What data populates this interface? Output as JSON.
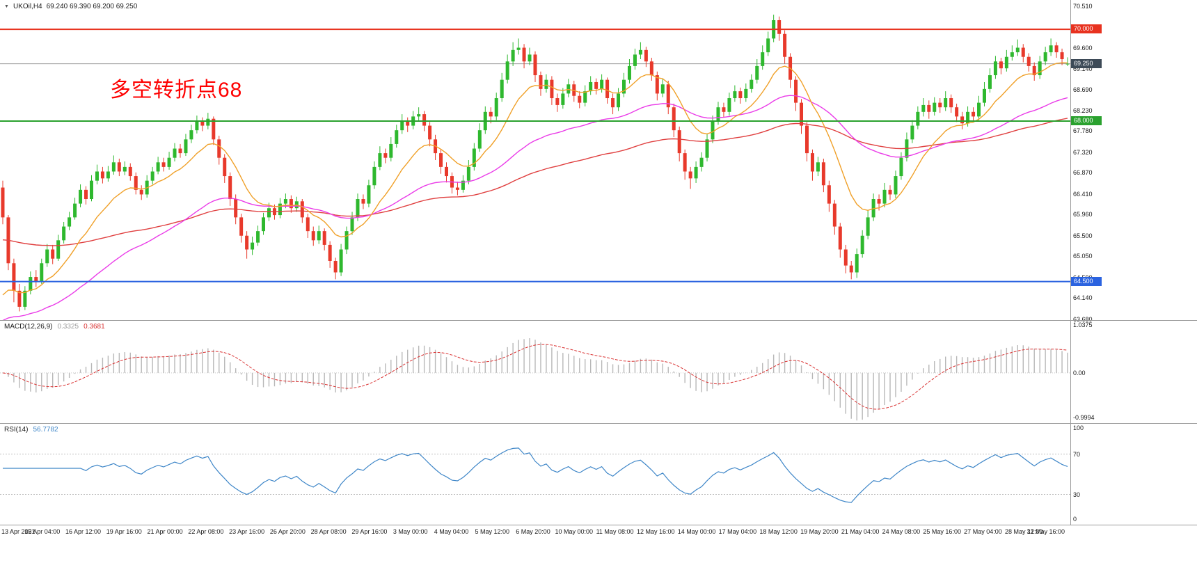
{
  "symbol_info": {
    "dropdown": "▼",
    "symbol": "UKOil,H4",
    "ohlc": "69.240 69.390 69.200 69.250"
  },
  "annotation": {
    "text": "多空转折点68",
    "color": "#fe0000"
  },
  "chart_data": {
    "type": "candlestick",
    "symbol": "UKOil",
    "timeframe": "H4",
    "last_ohlc": {
      "open": "69.240",
      "high": "69.390",
      "low": "69.200",
      "close": "69.250"
    },
    "y_range": [
      63.66,
      70.64
    ],
    "y_tick_labels": [
      "70.510",
      "69.600",
      "69.140",
      "68.690",
      "68.230",
      "67.780",
      "67.320",
      "66.870",
      "66.410",
      "65.960",
      "65.500",
      "65.050",
      "64.590",
      "64.140",
      "63.680"
    ],
    "price_badges": [
      {
        "name": "resistance-line",
        "label": "70.000",
        "price": 70.0,
        "bg": "#e8321f",
        "line": "#e8321f",
        "lw": 2
      },
      {
        "name": "current-price",
        "label": "69.250",
        "price": 69.25,
        "bg": "#3d4a57",
        "line": "#9a9a9a",
        "lw": 1
      },
      {
        "name": "support-line",
        "label": "68.000",
        "price": 68.0,
        "bg": "#2aa12e",
        "line": "#2aa12e",
        "lw": 2
      },
      {
        "name": "support-line-2",
        "label": "64.500",
        "price": 64.5,
        "bg": "#2b63e0",
        "line": "#2b63e0",
        "lw": 2
      }
    ],
    "candle_colors": {
      "up": "#2eb82e",
      "down": "#e8392b"
    },
    "x_labels": [
      "13 Apr 2021",
      "15 Apr 04:00",
      "16 Apr 12:00",
      "19 Apr 16:00",
      "21 Apr 00:00",
      "22 Apr 08:00",
      "23 Apr 16:00",
      "26 Apr 20:00",
      "28 Apr 08:00",
      "29 Apr 16:00",
      "3 May 00:00",
      "4 May 04:00",
      "5 May 12:00",
      "6 May 20:00",
      "10 May 00:00",
      "11 May 08:00",
      "12 May 16:00",
      "14 May 00:00",
      "17 May 04:00",
      "18 May 12:00",
      "19 May 20:00",
      "21 May 04:00",
      "24 May 08:00",
      "25 May 16:00",
      "27 May 04:00",
      "28 May 12:00",
      "31 May 16:00"
    ],
    "candles": [
      [
        66.55,
        66.7,
        65.75,
        65.9
      ],
      [
        65.9,
        65.95,
        64.75,
        64.9
      ],
      [
        64.9,
        65.0,
        64.05,
        64.3
      ],
      [
        64.3,
        64.45,
        63.85,
        63.95
      ],
      [
        63.95,
        64.4,
        63.88,
        64.3
      ],
      [
        64.3,
        64.72,
        64.22,
        64.6
      ],
      [
        64.6,
        64.75,
        64.38,
        64.5
      ],
      [
        64.5,
        65.0,
        64.45,
        64.9
      ],
      [
        64.9,
        65.32,
        64.82,
        65.2
      ],
      [
        65.2,
        65.3,
        64.88,
        65.0
      ],
      [
        65.0,
        65.52,
        64.95,
        65.4
      ],
      [
        65.4,
        65.8,
        65.33,
        65.7
      ],
      [
        65.7,
        66.02,
        65.62,
        65.9
      ],
      [
        65.9,
        66.33,
        65.85,
        66.2
      ],
      [
        66.2,
        66.62,
        66.12,
        66.5
      ],
      [
        66.5,
        66.58,
        66.18,
        66.3
      ],
      [
        66.3,
        66.82,
        66.25,
        66.7
      ],
      [
        66.7,
        67.05,
        66.62,
        66.9
      ],
      [
        66.9,
        67.0,
        66.64,
        66.75
      ],
      [
        66.75,
        67.02,
        66.68,
        66.9
      ],
      [
        66.9,
        67.25,
        66.83,
        67.1
      ],
      [
        67.1,
        67.18,
        66.8,
        66.9
      ],
      [
        66.9,
        67.12,
        66.82,
        67.0
      ],
      [
        67.0,
        67.08,
        66.7,
        66.8
      ],
      [
        66.8,
        66.88,
        66.4,
        66.5
      ],
      [
        66.5,
        66.6,
        66.28,
        66.4
      ],
      [
        66.4,
        66.82,
        66.33,
        66.7
      ],
      [
        66.7,
        67.0,
        66.62,
        66.9
      ],
      [
        66.9,
        67.22,
        66.84,
        67.1
      ],
      [
        67.1,
        67.2,
        66.9,
        67.0
      ],
      [
        67.0,
        67.33,
        66.94,
        67.2
      ],
      [
        67.2,
        67.52,
        67.12,
        67.4
      ],
      [
        67.4,
        67.5,
        67.2,
        67.3
      ],
      [
        67.3,
        67.72,
        67.24,
        67.6
      ],
      [
        67.6,
        67.92,
        67.52,
        67.8
      ],
      [
        67.8,
        68.12,
        67.73,
        68.0
      ],
      [
        68.0,
        68.08,
        67.78,
        67.9
      ],
      [
        67.9,
        68.18,
        67.82,
        68.05
      ],
      [
        68.05,
        68.1,
        67.48,
        67.6
      ],
      [
        67.6,
        67.68,
        67.05,
        67.2
      ],
      [
        67.2,
        67.28,
        66.65,
        66.8
      ],
      [
        66.8,
        66.88,
        66.15,
        66.3
      ],
      [
        66.3,
        66.4,
        65.75,
        65.9
      ],
      [
        65.9,
        65.98,
        65.35,
        65.5
      ],
      [
        65.5,
        65.6,
        65.0,
        65.2
      ],
      [
        65.2,
        65.48,
        65.08,
        65.35
      ],
      [
        65.35,
        65.72,
        65.28,
        65.6
      ],
      [
        65.6,
        66.0,
        65.52,
        65.9
      ],
      [
        65.9,
        66.22,
        65.82,
        66.1
      ],
      [
        66.1,
        66.18,
        65.85,
        65.95
      ],
      [
        65.95,
        66.32,
        65.88,
        66.2
      ],
      [
        66.2,
        66.42,
        66.1,
        66.3
      ],
      [
        66.3,
        66.38,
        66.0,
        66.1
      ],
      [
        66.1,
        66.35,
        66.02,
        66.25
      ],
      [
        66.25,
        66.3,
        65.78,
        65.9
      ],
      [
        65.9,
        65.98,
        65.45,
        65.6
      ],
      [
        65.6,
        65.7,
        65.28,
        65.4
      ],
      [
        65.4,
        65.72,
        65.32,
        65.6
      ],
      [
        65.6,
        65.66,
        65.18,
        65.3
      ],
      [
        65.3,
        65.38,
        64.8,
        64.95
      ],
      [
        64.95,
        65.02,
        64.55,
        64.7
      ],
      [
        64.7,
        65.32,
        64.62,
        65.2
      ],
      [
        65.2,
        65.7,
        65.1,
        65.6
      ],
      [
        65.6,
        66.02,
        65.52,
        65.9
      ],
      [
        65.9,
        66.42,
        65.82,
        66.3
      ],
      [
        66.3,
        66.4,
        66.08,
        66.2
      ],
      [
        66.2,
        66.72,
        66.12,
        66.6
      ],
      [
        66.6,
        67.12,
        66.52,
        67.0
      ],
      [
        67.0,
        67.45,
        66.93,
        67.3
      ],
      [
        67.3,
        67.4,
        67.08,
        67.2
      ],
      [
        67.2,
        67.65,
        67.12,
        67.5
      ],
      [
        67.5,
        67.92,
        67.42,
        67.8
      ],
      [
        67.8,
        68.15,
        67.72,
        68.0
      ],
      [
        68.0,
        68.08,
        67.76,
        67.9
      ],
      [
        67.9,
        68.22,
        67.82,
        68.1
      ],
      [
        68.1,
        68.3,
        68.0,
        68.15
      ],
      [
        68.15,
        68.22,
        67.78,
        67.9
      ],
      [
        67.9,
        67.98,
        67.45,
        67.6
      ],
      [
        67.6,
        67.7,
        67.15,
        67.3
      ],
      [
        67.3,
        67.38,
        66.85,
        67.0
      ],
      [
        67.0,
        67.1,
        66.66,
        66.8
      ],
      [
        66.8,
        66.88,
        66.42,
        66.55
      ],
      [
        66.55,
        66.68,
        66.38,
        66.5
      ],
      [
        66.5,
        66.82,
        66.44,
        66.7
      ],
      [
        66.7,
        67.15,
        66.62,
        67.0
      ],
      [
        67.0,
        67.52,
        66.92,
        67.4
      ],
      [
        67.4,
        67.95,
        67.33,
        67.8
      ],
      [
        67.8,
        68.32,
        67.72,
        68.2
      ],
      [
        68.2,
        68.3,
        67.95,
        68.1
      ],
      [
        68.1,
        68.62,
        68.02,
        68.5
      ],
      [
        68.5,
        69.05,
        68.42,
        68.9
      ],
      [
        68.9,
        69.45,
        68.82,
        69.3
      ],
      [
        69.3,
        69.72,
        69.2,
        69.55
      ],
      [
        69.55,
        69.8,
        69.45,
        69.6
      ],
      [
        69.6,
        69.68,
        69.15,
        69.3
      ],
      [
        69.3,
        69.6,
        69.22,
        69.45
      ],
      [
        69.45,
        69.52,
        68.85,
        69.0
      ],
      [
        69.0,
        69.08,
        68.55,
        68.7
      ],
      [
        68.7,
        69.02,
        68.62,
        68.9
      ],
      [
        68.9,
        68.98,
        68.35,
        68.5
      ],
      [
        68.5,
        68.6,
        68.2,
        68.35
      ],
      [
        68.35,
        68.72,
        68.27,
        68.6
      ],
      [
        68.6,
        68.92,
        68.52,
        68.8
      ],
      [
        68.8,
        68.88,
        68.42,
        68.55
      ],
      [
        68.55,
        68.65,
        68.28,
        68.4
      ],
      [
        68.4,
        68.78,
        68.32,
        68.65
      ],
      [
        68.65,
        68.98,
        68.57,
        68.85
      ],
      [
        68.85,
        68.93,
        68.58,
        68.7
      ],
      [
        68.7,
        69.02,
        68.62,
        68.9
      ],
      [
        68.9,
        68.95,
        68.38,
        68.5
      ],
      [
        68.5,
        68.6,
        68.15,
        68.3
      ],
      [
        68.3,
        68.72,
        68.22,
        68.6
      ],
      [
        68.6,
        69.05,
        68.52,
        68.9
      ],
      [
        68.9,
        69.35,
        68.82,
        69.2
      ],
      [
        69.2,
        69.58,
        69.12,
        69.45
      ],
      [
        69.45,
        69.72,
        69.35,
        69.55
      ],
      [
        69.55,
        69.62,
        69.18,
        69.3
      ],
      [
        69.3,
        69.38,
        68.88,
        69.0
      ],
      [
        69.0,
        69.08,
        68.45,
        68.6
      ],
      [
        68.6,
        68.92,
        68.52,
        68.8
      ],
      [
        68.8,
        68.88,
        68.15,
        68.3
      ],
      [
        68.3,
        68.38,
        67.65,
        67.8
      ],
      [
        67.8,
        67.88,
        67.12,
        67.3
      ],
      [
        67.3,
        67.38,
        66.72,
        66.9
      ],
      [
        66.9,
        67.0,
        66.52,
        66.75
      ],
      [
        66.75,
        67.12,
        66.65,
        67.0
      ],
      [
        67.0,
        67.32,
        66.9,
        67.2
      ],
      [
        67.2,
        67.72,
        67.12,
        67.6
      ],
      [
        67.6,
        68.12,
        67.52,
        68.0
      ],
      [
        68.0,
        68.42,
        67.92,
        68.3
      ],
      [
        68.3,
        68.4,
        68.08,
        68.2
      ],
      [
        68.2,
        68.62,
        68.12,
        68.5
      ],
      [
        68.5,
        68.78,
        68.42,
        68.65
      ],
      [
        68.65,
        68.73,
        68.38,
        68.5
      ],
      [
        68.5,
        68.82,
        68.42,
        68.7
      ],
      [
        68.7,
        69.02,
        68.62,
        68.9
      ],
      [
        68.9,
        69.35,
        68.82,
        69.2
      ],
      [
        69.2,
        69.65,
        69.12,
        69.5
      ],
      [
        69.5,
        69.95,
        69.42,
        69.8
      ],
      [
        69.8,
        70.32,
        69.72,
        70.2
      ],
      [
        70.2,
        70.28,
        69.75,
        69.9
      ],
      [
        69.9,
        69.98,
        69.25,
        69.4
      ],
      [
        69.4,
        69.48,
        68.72,
        68.9
      ],
      [
        68.9,
        68.98,
        68.22,
        68.4
      ],
      [
        68.4,
        68.48,
        67.72,
        67.9
      ],
      [
        67.9,
        67.98,
        67.12,
        67.3
      ],
      [
        67.3,
        67.38,
        66.7,
        66.9
      ],
      [
        66.9,
        67.22,
        66.8,
        67.1
      ],
      [
        67.1,
        67.18,
        66.45,
        66.6
      ],
      [
        66.6,
        66.7,
        66.02,
        66.2
      ],
      [
        66.2,
        66.28,
        65.52,
        65.7
      ],
      [
        65.7,
        65.78,
        65.02,
        65.2
      ],
      [
        65.2,
        65.3,
        64.68,
        64.85
      ],
      [
        64.85,
        64.95,
        64.55,
        64.7
      ],
      [
        64.7,
        65.22,
        64.58,
        65.1
      ],
      [
        65.1,
        65.62,
        65.02,
        65.5
      ],
      [
        65.5,
        66.05,
        65.42,
        65.9
      ],
      [
        65.9,
        66.42,
        65.82,
        66.3
      ],
      [
        66.3,
        66.4,
        66.05,
        66.2
      ],
      [
        66.2,
        66.65,
        66.12,
        66.5
      ],
      [
        66.5,
        66.6,
        66.28,
        66.4
      ],
      [
        66.4,
        66.92,
        66.32,
        66.8
      ],
      [
        66.8,
        67.32,
        66.72,
        67.2
      ],
      [
        67.2,
        67.75,
        67.12,
        67.6
      ],
      [
        67.6,
        68.02,
        67.52,
        67.9
      ],
      [
        67.9,
        68.32,
        67.82,
        68.2
      ],
      [
        68.2,
        68.5,
        68.1,
        68.35
      ],
      [
        68.35,
        68.45,
        68.05,
        68.2
      ],
      [
        68.2,
        68.52,
        68.12,
        68.4
      ],
      [
        68.4,
        68.5,
        68.18,
        68.3
      ],
      [
        68.3,
        68.65,
        68.22,
        68.5
      ],
      [
        68.5,
        68.58,
        68.18,
        68.3
      ],
      [
        68.3,
        68.38,
        67.98,
        68.1
      ],
      [
        68.1,
        68.2,
        67.82,
        67.95
      ],
      [
        67.95,
        68.32,
        67.88,
        68.2
      ],
      [
        68.2,
        68.3,
        67.98,
        68.1
      ],
      [
        68.1,
        68.55,
        68.02,
        68.4
      ],
      [
        68.4,
        68.85,
        68.32,
        68.7
      ],
      [
        68.7,
        69.15,
        68.62,
        69.0
      ],
      [
        69.0,
        69.42,
        68.92,
        69.3
      ],
      [
        69.3,
        69.38,
        69.02,
        69.15
      ],
      [
        69.15,
        69.55,
        69.08,
        69.4
      ],
      [
        69.4,
        69.65,
        69.32,
        69.5
      ],
      [
        69.5,
        69.78,
        69.42,
        69.6
      ],
      [
        69.6,
        69.68,
        69.28,
        69.4
      ],
      [
        69.4,
        69.48,
        69.08,
        69.2
      ],
      [
        69.2,
        69.28,
        68.88,
        69.0
      ],
      [
        69.0,
        69.42,
        68.92,
        69.3
      ],
      [
        69.3,
        69.62,
        69.22,
        69.5
      ],
      [
        69.5,
        69.8,
        69.42,
        69.65
      ],
      [
        69.65,
        69.72,
        69.38,
        69.5
      ],
      [
        69.5,
        69.58,
        69.22,
        69.35
      ],
      [
        69.24,
        69.39,
        69.2,
        69.25
      ]
    ],
    "overlays": [
      {
        "name": "ma-slow",
        "period": 100,
        "seed": 65.4,
        "color": "#e04040"
      },
      {
        "name": "ma-mid",
        "period": 45,
        "seed": 63.55,
        "color": "#ea3ce8"
      },
      {
        "name": "ma-fast",
        "period": 12,
        "seed": 63.9,
        "color": "#f0a028"
      }
    ],
    "indicators": [
      {
        "name": "MACD",
        "label": "MACD(12,26,9)",
        "value1": "0.3325",
        "value2": "0.3681",
        "fast": 12,
        "slow": 26,
        "signal": 9,
        "range": [
          -0.9994,
          1.0375
        ],
        "ticks": [
          {
            "v": 1.0375,
            "t": "1.0375"
          },
          {
            "v": 0,
            "t": "0.00"
          },
          {
            "v": -0.9994,
            "t": "-0.9994"
          }
        ],
        "hist_color": "#b8b8b8",
        "signal_color": "#d93030"
      },
      {
        "name": "RSI",
        "label": "RSI(14)",
        "value": "56.7782",
        "period": 14,
        "range": [
          0,
          100
        ],
        "levels": [
          70,
          30
        ],
        "ticks": [
          {
            "v": 100,
            "t": "100"
          },
          {
            "v": 70,
            "t": "70"
          },
          {
            "v": 30,
            "t": "30"
          },
          {
            "v": 0,
            "t": "0"
          }
        ],
        "line_color": "#3e86c8"
      }
    ]
  }
}
